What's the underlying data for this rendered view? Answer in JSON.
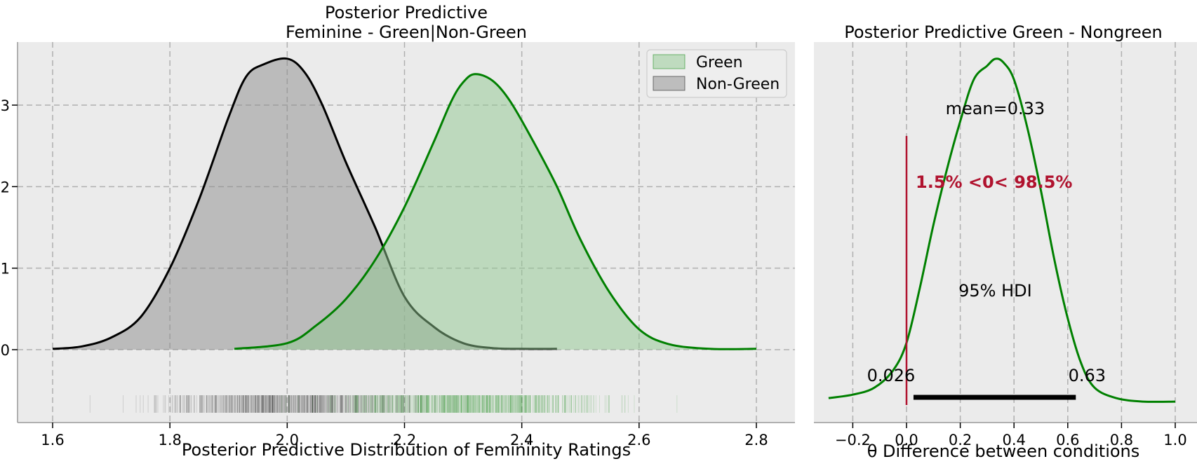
{
  "chart_data": [
    {
      "type": "area",
      "title_line1": "Posterior Predictive",
      "title_line2": "Feminine - Green|Non-Green",
      "xlabel": "Posterior Predictive Distribution of Femininity Ratings",
      "ylabel": "",
      "xlim": [
        1.6,
        2.8
      ],
      "ylim": [
        -0.85,
        3.8
      ],
      "x_ticks": [
        "1.6",
        "1.8",
        "2.0",
        "2.2",
        "2.4",
        "2.6",
        "2.8"
      ],
      "x_tick_values": [
        1.6,
        1.8,
        2.0,
        2.2,
        2.4,
        2.6,
        2.8
      ],
      "y_ticks": [
        "0",
        "1",
        "2",
        "3"
      ],
      "y_tick_values": [
        0,
        1,
        2,
        3
      ],
      "grid": true,
      "legend_position": "top-right",
      "series": [
        {
          "name": "Green",
          "line_color": "#008000",
          "fill_color": "#90c890",
          "x": [
            1.91,
            2.0,
            2.05,
            2.1,
            2.15,
            2.2,
            2.25,
            2.28,
            2.3,
            2.32,
            2.35,
            2.38,
            2.42,
            2.46,
            2.5,
            2.55,
            2.6,
            2.65,
            2.72,
            2.8
          ],
          "y": [
            0.01,
            0.08,
            0.3,
            0.62,
            1.1,
            1.75,
            2.55,
            3.05,
            3.28,
            3.38,
            3.3,
            3.05,
            2.55,
            2.0,
            1.35,
            0.7,
            0.25,
            0.07,
            0.01,
            0.01
          ],
          "rug_range": [
            1.93,
            2.81
          ]
        },
        {
          "name": "Non-Green",
          "line_color": "#000000",
          "fill_color": "#8c8c8c",
          "x": [
            1.6,
            1.65,
            1.7,
            1.75,
            1.8,
            1.85,
            1.9,
            1.93,
            1.96,
            2.0,
            2.03,
            2.06,
            2.1,
            2.15,
            2.2,
            2.25,
            2.3,
            2.35,
            2.4,
            2.46
          ],
          "y": [
            0.01,
            0.04,
            0.15,
            0.4,
            1.0,
            1.85,
            2.85,
            3.35,
            3.5,
            3.57,
            3.4,
            3.0,
            2.3,
            1.5,
            0.65,
            0.28,
            0.08,
            0.02,
            0.01,
            0.01
          ],
          "rug_range": [
            1.6,
            2.36
          ]
        }
      ]
    },
    {
      "type": "line",
      "title": "Posterior Predictive Green - Nongreen",
      "xlabel": "θ Difference between conditions",
      "xlim": [
        -0.33,
        1.03
      ],
      "ylim": [
        0,
        1.06
      ],
      "x_ticks": [
        "−0.2",
        "0.0",
        "0.2",
        "0.4",
        "0.6",
        "0.8",
        "1.0"
      ],
      "x_tick_values": [
        -0.2,
        0.0,
        0.2,
        0.4,
        0.6,
        0.8,
        1.0
      ],
      "grid": true,
      "series": [
        {
          "name": "",
          "line_color": "#008000",
          "x": [
            -0.29,
            -0.2,
            -0.12,
            -0.05,
            0.0,
            0.05,
            0.1,
            0.15,
            0.2,
            0.25,
            0.3,
            0.33,
            0.36,
            0.4,
            0.45,
            0.5,
            0.55,
            0.6,
            0.65,
            0.7,
            0.78,
            0.88,
            1.0
          ],
          "y": [
            0.02,
            0.03,
            0.05,
            0.1,
            0.18,
            0.34,
            0.52,
            0.68,
            0.82,
            0.94,
            0.98,
            1.0,
            0.99,
            0.94,
            0.8,
            0.62,
            0.42,
            0.25,
            0.12,
            0.05,
            0.02,
            0.01,
            0.01
          ]
        }
      ],
      "reference_value": 0.0,
      "reference_color": "#b0122e",
      "mean_label": "mean=0.33",
      "prob_label": "1.5% <0< 98.5%",
      "hdi_label": "95% HDI",
      "hdi": [
        0.026,
        0.63
      ],
      "hdi_low_label": "0.026",
      "hdi_high_label": "0.63"
    }
  ]
}
